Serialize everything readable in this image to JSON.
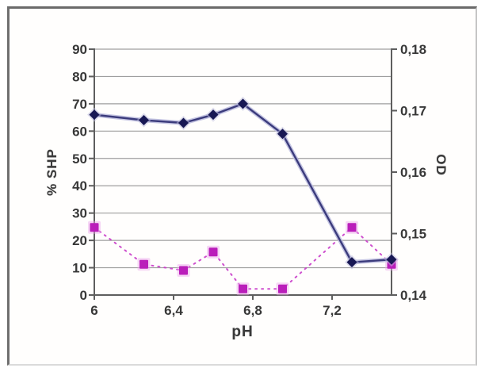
{
  "figure": {
    "xlabel": "pH",
    "ylabel_left": "% SHP",
    "ylabel_right": "OD"
  },
  "chart_data": {
    "type": "line",
    "title": "",
    "xlabel": "pH",
    "ylabel_left": "% SHP",
    "ylabel_right": "OD",
    "x": [
      6.0,
      6.25,
      6.45,
      6.6,
      6.75,
      6.95,
      7.3,
      7.5
    ],
    "series": [
      {
        "name": "% SHP",
        "axis": "left",
        "marker": "diamond",
        "line_style": "solid",
        "values": [
          66,
          64,
          63,
          66,
          70,
          59,
          12,
          13
        ]
      },
      {
        "name": "OD",
        "axis": "right",
        "marker": "square",
        "line_style": "dotted",
        "values": [
          0.151,
          0.145,
          0.144,
          0.147,
          0.141,
          0.141,
          0.151,
          0.145
        ]
      }
    ],
    "xlim": [
      6.0,
      7.5
    ],
    "ylim_left": [
      0,
      90
    ],
    "ylim_right": [
      0.14,
      0.18
    ],
    "x_tick_values": [
      6.0,
      6.4,
      6.8,
      7.2
    ],
    "x_tick_labels": [
      "6",
      "6,4",
      "6,8",
      "7,2"
    ],
    "left_tick_values": [
      0,
      10,
      20,
      30,
      40,
      50,
      60,
      70,
      80,
      90
    ],
    "left_tick_labels": [
      "0",
      "10",
      "20",
      "30",
      "40",
      "50",
      "60",
      "70",
      "80",
      "90"
    ],
    "right_tick_values": [
      0.14,
      0.15,
      0.16,
      0.17,
      0.18
    ],
    "right_tick_labels": [
      "0,14",
      "0,15",
      "0,16",
      "0,17",
      "0,18"
    ],
    "grid": true,
    "legend": "none"
  },
  "colors": {
    "shp_line": "#3d3d7c",
    "shp_line_halo": "#b9b9da",
    "shp_marker": "#1b1b55",
    "od_line": "#c73ec7",
    "od_marker": "#b821b8",
    "od_marker_halo": "#e9a6e9",
    "grid": "#9e9e9e",
    "axis": "#5f5f5f",
    "tick_text": "#3a3a3a"
  }
}
